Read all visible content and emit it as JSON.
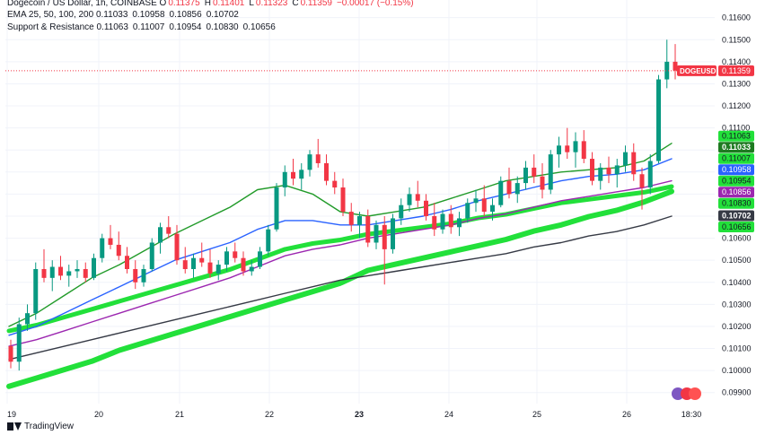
{
  "header": {
    "title": "Dogecoin / US Dollar, 1h, COINBASE",
    "ohlc": [
      {
        "k": "O",
        "v": "0.11375"
      },
      {
        "k": "H",
        "v": "0.11401"
      },
      {
        "k": "L",
        "v": "0.11323"
      },
      {
        "k": "C",
        "v": "0.11359"
      }
    ],
    "change": "−0.00017 (−0.15%)",
    "ema_label": "EMA 25, 50, 100, 200",
    "ema_values": [
      "0.11033",
      "0.10958",
      "0.10856",
      "0.10702"
    ],
    "sr_label": "Support & Resistance",
    "sr_values": [
      "0.11063",
      "0.11007",
      "0.10954",
      "0.10830",
      "0.10656"
    ]
  },
  "footer": {
    "brand": "TradingView"
  },
  "colors": {
    "up": "#089981",
    "down": "#f23645",
    "accent_green": "#22e03a",
    "ema25": "#229b2a",
    "ema50": "#2962ff",
    "ema100": "#9c27b0",
    "ema200": "#363a45",
    "grid": "#f0f3fa",
    "axis_text": "#131722"
  },
  "chart_data": {
    "type": "candlestick",
    "symbol_label": "DOGEUSD",
    "last_price": "0.11359",
    "y_range": [
      0.0985,
      0.1168
    ],
    "y_ticks": [
      "0.11600",
      "0.11500",
      "0.11400",
      "0.11300",
      "0.11200",
      "0.11100",
      "0.11000",
      "0.10900",
      "0.10800",
      "0.10700",
      "0.10600",
      "0.10500",
      "0.10400",
      "0.10300",
      "0.10200",
      "0.10100",
      "0.10000",
      "0.09900"
    ],
    "x_ticks": [
      "19",
      "20",
      "21",
      "22",
      "23",
      "24",
      "25",
      "26",
      "18:30"
    ],
    "grid": true,
    "right_labels": [
      {
        "text": "0.11063",
        "price": 0.11063,
        "style": "green"
      },
      {
        "text": "0.11033",
        "price": 0.11033,
        "style": "dark-green"
      },
      {
        "text": "0.11007",
        "price": 0.11007,
        "style": "green"
      },
      {
        "text": "0.10958",
        "price": 0.10958,
        "style": "blue"
      },
      {
        "text": "0.10954",
        "price": 0.10954,
        "style": "green"
      },
      {
        "text": "0.10856",
        "price": 0.10856,
        "style": "purple"
      },
      {
        "text": "0.10830",
        "price": 0.1083,
        "style": "green"
      },
      {
        "text": "0.10702",
        "price": 0.10702,
        "style": "black"
      },
      {
        "text": "0.10656",
        "price": 0.10656,
        "style": "green"
      }
    ],
    "candles_approx": [
      [
        0.1011,
        0.1014,
        0.1001,
        0.1004
      ],
      [
        0.1004,
        0.1024,
        0.1,
        0.1021
      ],
      [
        0.1021,
        0.103,
        0.1018,
        0.1026
      ],
      [
        0.1026,
        0.1049,
        0.1023,
        0.1046
      ],
      [
        0.1046,
        0.1055,
        0.104,
        0.1042
      ],
      [
        0.1042,
        0.105,
        0.1036,
        0.1047
      ],
      [
        0.1047,
        0.1052,
        0.1041,
        0.1043
      ],
      [
        0.1043,
        0.1048,
        0.1038,
        0.1045
      ],
      [
        0.1045,
        0.105,
        0.1042,
        0.1046
      ],
      [
        0.1046,
        0.1049,
        0.104,
        0.1042
      ],
      [
        0.1042,
        0.1053,
        0.1041,
        0.1051
      ],
      [
        0.1051,
        0.1062,
        0.1049,
        0.106
      ],
      [
        0.106,
        0.1066,
        0.1055,
        0.1057
      ],
      [
        0.1057,
        0.1063,
        0.105,
        0.1052
      ],
      [
        0.1052,
        0.1056,
        0.1044,
        0.1046
      ],
      [
        0.1046,
        0.105,
        0.1037,
        0.104
      ],
      [
        0.104,
        0.1048,
        0.1038,
        0.1046
      ],
      [
        0.1046,
        0.106,
        0.1045,
        0.1058
      ],
      [
        0.1058,
        0.1067,
        0.1053,
        0.1065
      ],
      [
        0.1065,
        0.107,
        0.106,
        0.1062
      ],
      [
        0.1062,
        0.1066,
        0.1048,
        0.105
      ],
      [
        0.105,
        0.1056,
        0.1044,
        0.1046
      ],
      [
        0.1046,
        0.1053,
        0.1042,
        0.1051
      ],
      [
        0.1051,
        0.1058,
        0.1047,
        0.1049
      ],
      [
        0.1049,
        0.1055,
        0.1042,
        0.1044
      ],
      [
        0.1044,
        0.105,
        0.1041,
        0.1048
      ],
      [
        0.1048,
        0.1056,
        0.1045,
        0.1054
      ],
      [
        0.1054,
        0.1058,
        0.1049,
        0.1051
      ],
      [
        0.1051,
        0.1054,
        0.1043,
        0.1045
      ],
      [
        0.1045,
        0.105,
        0.1043,
        0.1047
      ],
      [
        0.1047,
        0.1056,
        0.1046,
        0.1054
      ],
      [
        0.1054,
        0.1066,
        0.1052,
        0.1064
      ],
      [
        0.1064,
        0.1085,
        0.1063,
        0.1083
      ],
      [
        0.1083,
        0.1093,
        0.1079,
        0.109
      ],
      [
        0.109,
        0.1096,
        0.1084,
        0.1087
      ],
      [
        0.1087,
        0.1094,
        0.1082,
        0.1091
      ],
      [
        0.1091,
        0.11,
        0.1088,
        0.1098
      ],
      [
        0.1098,
        0.1105,
        0.1092,
        0.1094
      ],
      [
        0.1094,
        0.1098,
        0.1084,
        0.1086
      ],
      [
        0.1086,
        0.109,
        0.108,
        0.1083
      ],
      [
        0.1083,
        0.1087,
        0.107,
        0.1072
      ],
      [
        0.1072,
        0.1076,
        0.1063,
        0.1066
      ],
      [
        0.1066,
        0.1072,
        0.106,
        0.107
      ],
      [
        0.107,
        0.1073,
        0.1056,
        0.1058
      ],
      [
        0.1058,
        0.1068,
        0.1055,
        0.1066
      ],
      [
        0.1066,
        0.107,
        0.1039,
        0.1055
      ],
      [
        0.1055,
        0.1071,
        0.1053,
        0.1069
      ],
      [
        0.1069,
        0.1078,
        0.1066,
        0.1075
      ],
      [
        0.1075,
        0.1083,
        0.1072,
        0.108
      ],
      [
        0.108,
        0.1086,
        0.1074,
        0.1077
      ],
      [
        0.1077,
        0.108,
        0.1068,
        0.107
      ],
      [
        0.107,
        0.1076,
        0.1061,
        0.1064
      ],
      [
        0.1064,
        0.1073,
        0.1062,
        0.1071
      ],
      [
        0.1071,
        0.1075,
        0.1062,
        0.1065
      ],
      [
        0.1065,
        0.1072,
        0.1061,
        0.1069
      ],
      [
        0.1069,
        0.1078,
        0.1067,
        0.1076
      ],
      [
        0.1076,
        0.1082,
        0.1072,
        0.1078
      ],
      [
        0.1078,
        0.1084,
        0.107,
        0.1072
      ],
      [
        0.1072,
        0.1078,
        0.1068,
        0.1075
      ],
      [
        0.1075,
        0.1088,
        0.1074,
        0.1086
      ],
      [
        0.1086,
        0.1092,
        0.1078,
        0.108
      ],
      [
        0.108,
        0.1088,
        0.1076,
        0.1085
      ],
      [
        0.1085,
        0.1095,
        0.1082,
        0.1092
      ],
      [
        0.1092,
        0.1098,
        0.1085,
        0.1088
      ],
      [
        0.1088,
        0.1094,
        0.1078,
        0.1082
      ],
      [
        0.1082,
        0.11,
        0.108,
        0.1098
      ],
      [
        0.1098,
        0.1106,
        0.1092,
        0.1102
      ],
      [
        0.1102,
        0.111,
        0.1096,
        0.1099
      ],
      [
        0.1099,
        0.1108,
        0.1092,
        0.1104
      ],
      [
        0.1104,
        0.1109,
        0.1094,
        0.1096
      ],
      [
        0.1096,
        0.1099,
        0.1084,
        0.1086
      ],
      [
        0.1086,
        0.1094,
        0.1082,
        0.1092
      ],
      [
        0.1092,
        0.1097,
        0.1085,
        0.1089
      ],
      [
        0.1089,
        0.1096,
        0.1083,
        0.1093
      ],
      [
        0.1093,
        0.1102,
        0.109,
        0.1099
      ],
      [
        0.1099,
        0.1103,
        0.1086,
        0.1089
      ],
      [
        0.1089,
        0.1092,
        0.1073,
        0.1083
      ],
      [
        0.1083,
        0.1098,
        0.108,
        0.1095
      ],
      [
        0.1095,
        0.1134,
        0.1094,
        0.1132
      ],
      [
        0.1132,
        0.115,
        0.1128,
        0.114
      ],
      [
        0.114,
        0.1148,
        0.1132,
        0.1136
      ]
    ],
    "ema_lines_approx": {
      "ema25": [
        0.102,
        0.1026,
        0.1034,
        0.1042,
        0.1048,
        0.1055,
        0.1062,
        0.1068,
        0.1074,
        0.1082,
        0.1084,
        0.108,
        0.1072,
        0.107,
        0.1072,
        0.1074,
        0.1078,
        0.1082,
        0.1086,
        0.1088,
        0.109,
        0.1091,
        0.1092,
        0.1095,
        0.1103
      ],
      "ema50": [
        0.1016,
        0.102,
        0.1026,
        0.1032,
        0.1038,
        0.1044,
        0.105,
        0.1054,
        0.1058,
        0.1064,
        0.1068,
        0.1068,
        0.1066,
        0.1066,
        0.1068,
        0.107,
        0.1073,
        0.1077,
        0.108,
        0.1083,
        0.1086,
        0.1088,
        0.1089,
        0.1091,
        0.1096
      ],
      "ema100": [
        0.1011,
        0.1014,
        0.1018,
        0.1022,
        0.1026,
        0.103,
        0.1034,
        0.1038,
        0.1042,
        0.1047,
        0.1052,
        0.1055,
        0.1057,
        0.106,
        0.1062,
        0.1064,
        0.1066,
        0.1069,
        0.1071,
        0.1074,
        0.1077,
        0.1079,
        0.1081,
        0.1083,
        0.1086
      ],
      "ema200": [
        0.1005,
        0.1008,
        0.1011,
        0.1014,
        0.1017,
        0.102,
        0.1023,
        0.1026,
        0.1029,
        0.1032,
        0.1035,
        0.1038,
        0.1041,
        0.1043,
        0.1045,
        0.1047,
        0.1049,
        0.1051,
        0.1053,
        0.1056,
        0.1058,
        0.1061,
        0.1063,
        0.1066,
        0.107
      ]
    }
  }
}
